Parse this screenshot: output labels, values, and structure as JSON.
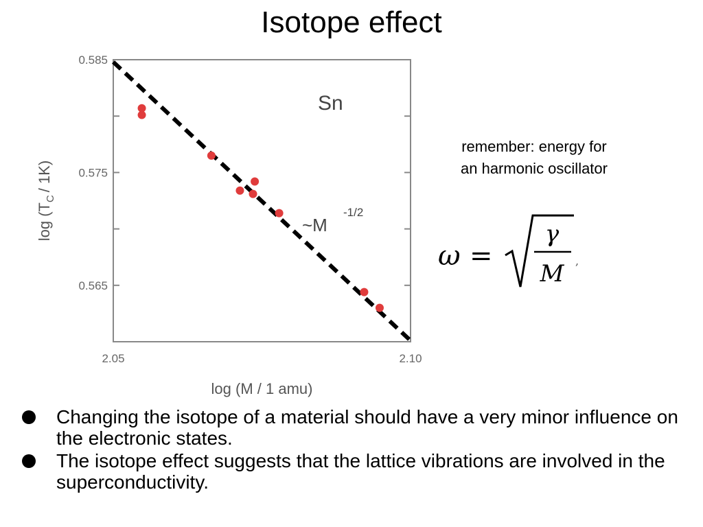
{
  "slide": {
    "title": "Isotope effect",
    "note_line1": "remember: energy for",
    "note_line2": "an harmonic oscillator",
    "formula": {
      "lhs": "ω",
      "equals": "=",
      "numerator": "γ",
      "denominator": "M",
      "trailing": ","
    },
    "bullets": [
      "Changing the isotope of a material should have a very minor influence on the electronic states.",
      "The isotope effect suggests that the lattice vibrations are involved in the superconductivity."
    ]
  },
  "chart_data": {
    "type": "scatter",
    "title": "",
    "xlabel": "log (M / 1 amu)",
    "ylabel_parts": [
      "log (T",
      "C",
      "/ 1K)"
    ],
    "xlim": [
      2.05,
      2.1
    ],
    "ylim": [
      0.56,
      0.585
    ],
    "x_tick_labels": [
      {
        "value": 2.05,
        "label": "2.05"
      },
      {
        "value": 2.1,
        "label": "2.10"
      }
    ],
    "y_tick_labels": [
      {
        "value": 0.585,
        "label": "0.585"
      },
      {
        "value": 0.575,
        "label": "0.575"
      },
      {
        "value": 0.565,
        "label": "0.565"
      }
    ],
    "y_minor_ticks": [
      0.58,
      0.57
    ],
    "annotation_element": "Sn",
    "annotation_law_main": "~M",
    "annotation_law_exp": "-1/2",
    "fit_line": {
      "x": [
        2.05,
        2.1
      ],
      "y": [
        0.5848,
        0.5601
      ],
      "style": "dashed",
      "color": "#000000"
    },
    "points": [
      {
        "x": 2.0548,
        "y": 0.5807
      },
      {
        "x": 2.0548,
        "y": 0.5801
      },
      {
        "x": 2.0665,
        "y": 0.5765
      },
      {
        "x": 2.0713,
        "y": 0.5734
      },
      {
        "x": 2.0735,
        "y": 0.5731
      },
      {
        "x": 2.0738,
        "y": 0.5742
      },
      {
        "x": 2.0779,
        "y": 0.5714
      },
      {
        "x": 2.0922,
        "y": 0.5644
      },
      {
        "x": 2.0948,
        "y": 0.563
      }
    ],
    "point_color": "#e03c3c"
  }
}
